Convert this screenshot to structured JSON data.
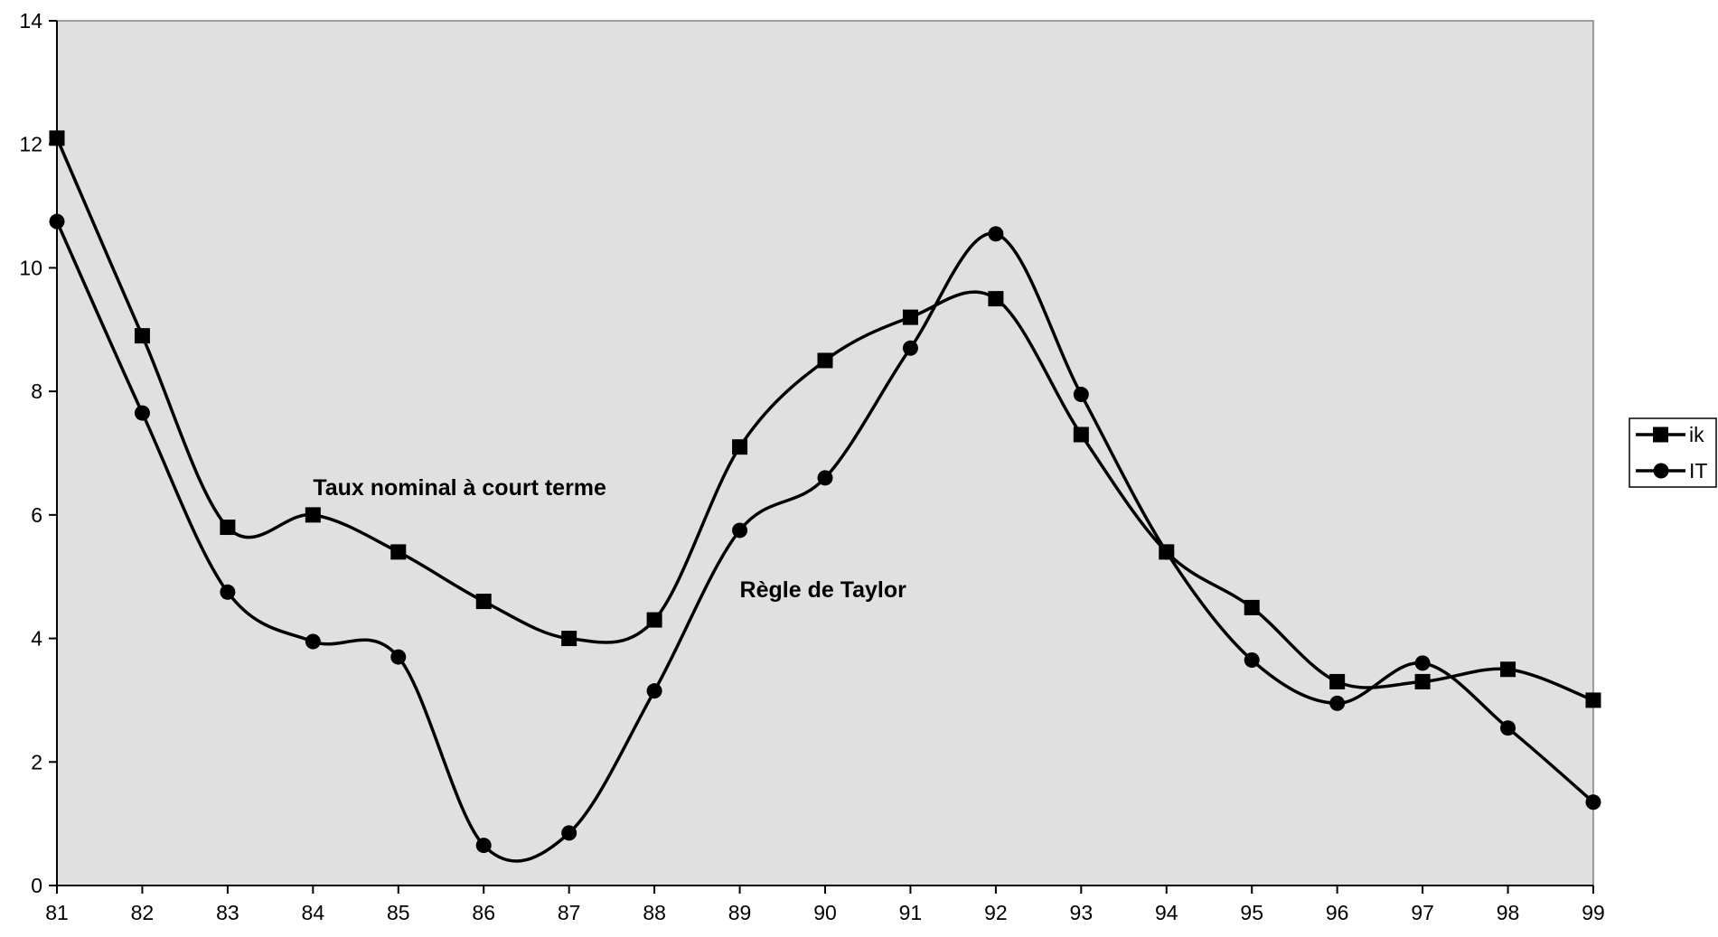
{
  "chart_data": {
    "type": "line",
    "title": "",
    "xlabel": "",
    "ylabel": "",
    "x": [
      "81",
      "82",
      "83",
      "84",
      "85",
      "86",
      "87",
      "88",
      "89",
      "90",
      "91",
      "92",
      "93",
      "94",
      "95",
      "96",
      "97",
      "98",
      "99"
    ],
    "ylim": [
      0,
      14
    ],
    "yticks": [
      0,
      2,
      4,
      6,
      8,
      10,
      12,
      14
    ],
    "grid": false,
    "smooth": true,
    "plot_background": "#e0e0e0",
    "line_color": "#000000",
    "legend_position": "right",
    "series": [
      {
        "name": "ik",
        "marker": "square",
        "values": [
          12.1,
          8.9,
          5.8,
          6.0,
          5.4,
          4.6,
          4.0,
          4.3,
          7.1,
          8.5,
          9.2,
          9.5,
          7.3,
          5.4,
          4.5,
          3.3,
          3.3,
          3.5,
          3.0
        ]
      },
      {
        "name": "IT",
        "marker": "circle",
        "values": [
          10.75,
          7.65,
          4.75,
          3.95,
          3.7,
          0.65,
          0.85,
          3.15,
          5.75,
          6.6,
          8.7,
          10.55,
          7.95,
          5.4,
          3.65,
          2.95,
          3.6,
          2.55,
          1.35
        ]
      }
    ],
    "annotations": [
      {
        "text": "Taux nominal à court terme",
        "x_index": 3.0,
        "y": 6.45
      },
      {
        "text": "Règle de Taylor",
        "x_index": 8.0,
        "y": 4.8
      }
    ]
  }
}
